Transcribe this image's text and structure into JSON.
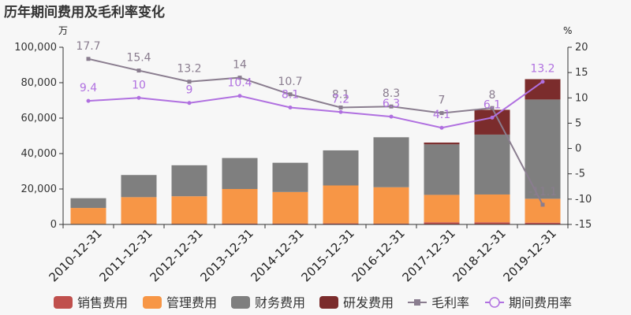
{
  "chart_data": {
    "type": "bar",
    "title": "历年期间费用及毛利率变化",
    "left_unit": "万",
    "right_unit": "%",
    "categories": [
      "2010-12-31",
      "2011-12-31",
      "2012-12-31",
      "2013-12-31",
      "2014-12-31",
      "2015-12-31",
      "2016-12-31",
      "2017-12-31",
      "2018-12-31",
      "2019-12-31"
    ],
    "ylim_left": [
      0,
      100000
    ],
    "yticks_left": [
      "0",
      "20,000",
      "40,000",
      "60,000",
      "80,000",
      "100,000"
    ],
    "ylim_right": [
      -15,
      20
    ],
    "yticks_right": [
      "-15",
      "-10",
      "-5",
      "0",
      "5",
      "10",
      "15",
      "20"
    ],
    "bar_series": [
      {
        "name": "销售费用",
        "color": "#c0504d",
        "values": [
          300,
          400,
          400,
          500,
          500,
          600,
          500,
          1200,
          1200,
          1000
        ]
      },
      {
        "name": "管理费用",
        "color": "#f79646",
        "values": [
          9000,
          15000,
          15500,
          19500,
          17800,
          21400,
          20500,
          15500,
          15700,
          13500
        ]
      },
      {
        "name": "财务费用",
        "color": "#7f7f7f",
        "values": [
          5500,
          12500,
          17500,
          17500,
          16500,
          19800,
          28200,
          28500,
          33800,
          56000
        ]
      },
      {
        "name": "研发费用",
        "color": "#7b2c2c",
        "values": [
          0,
          0,
          0,
          0,
          0,
          0,
          0,
          1000,
          14000,
          11500
        ]
      }
    ],
    "line_series": [
      {
        "name": "毛利率",
        "color": "#8a7d8f",
        "marker": "square",
        "values": [
          17.7,
          15.4,
          13.2,
          14,
          10.7,
          8.1,
          8.3,
          7,
          8,
          -11.1
        ],
        "labels": [
          "17.7",
          "15.4",
          "13.2",
          "14",
          "10.7",
          "8.1",
          "8.3",
          "7",
          "8",
          "-11.1"
        ]
      },
      {
        "name": "期间费用率",
        "color": "#b070e0",
        "marker": "circle",
        "values": [
          9.4,
          10,
          9,
          10.4,
          8.1,
          7.2,
          6.3,
          4.1,
          6.1,
          13.2
        ],
        "labels": [
          "9.4",
          "10",
          "9",
          "10.4",
          "8.1",
          "7.2",
          "6.3",
          "4.1",
          "6.1",
          "13.2"
        ]
      }
    ],
    "legend": {
      "position": "bottom"
    }
  }
}
